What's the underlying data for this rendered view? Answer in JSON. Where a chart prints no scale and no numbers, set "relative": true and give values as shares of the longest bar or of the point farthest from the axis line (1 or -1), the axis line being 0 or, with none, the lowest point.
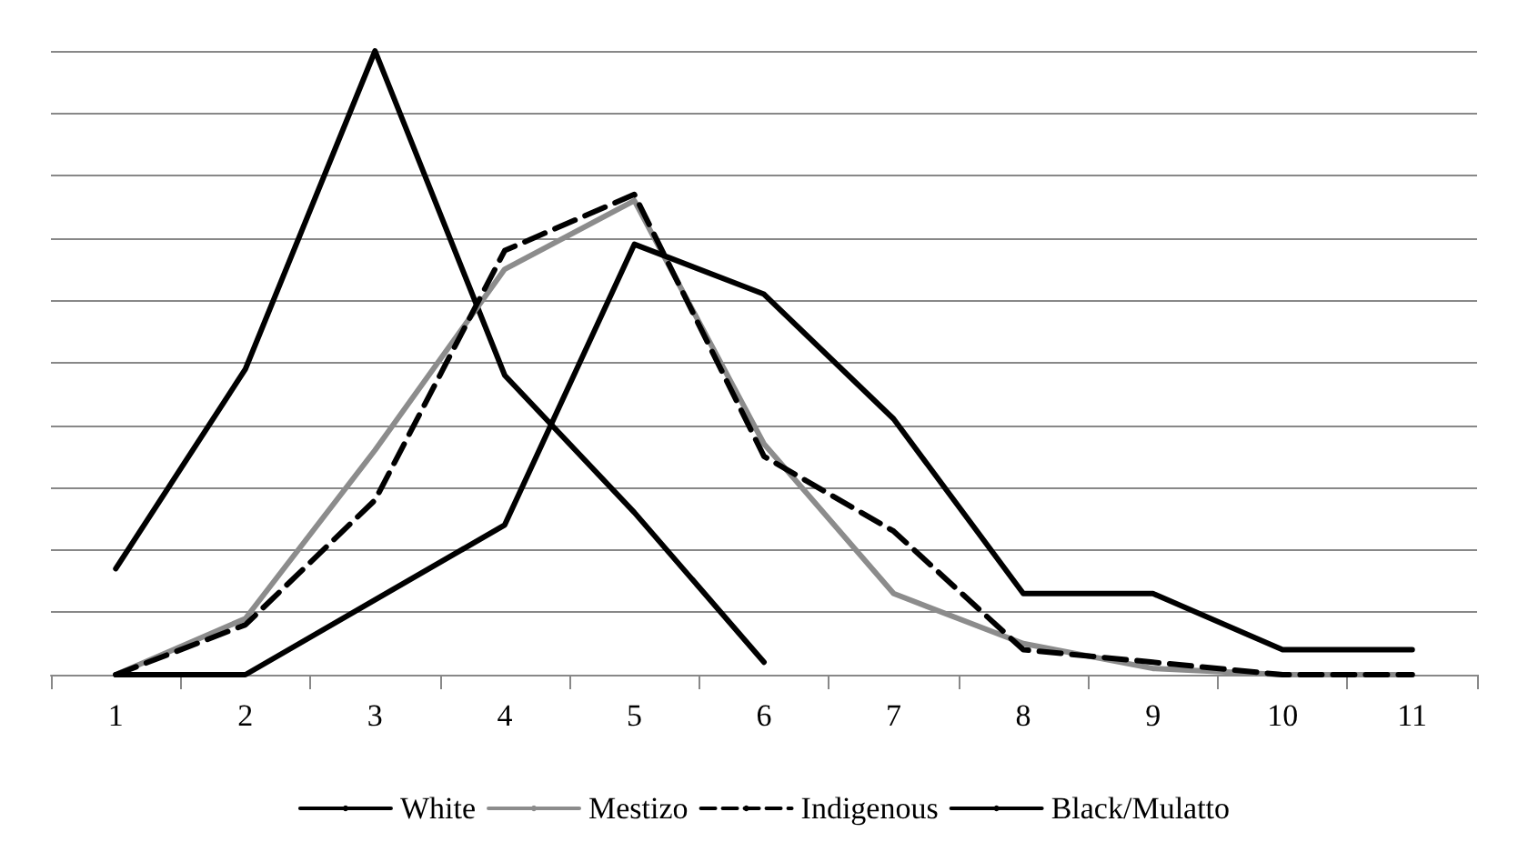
{
  "chart_data": {
    "type": "line",
    "relative": true,
    "grid": "y",
    "legend": "bottom",
    "marker": "none",
    "categories": [
      "1",
      "2",
      "3",
      "4",
      "5",
      "6",
      "7",
      "8",
      "9",
      "10",
      "11"
    ],
    "series": [
      {
        "name": "White",
        "color": "#000000",
        "values": [
          0.17,
          0.49,
          1,
          0.48,
          0.26,
          0.02,
          null,
          null,
          null,
          null,
          null
        ]
      },
      {
        "name": "Mestizo",
        "color": "#8c8c8c",
        "values": [
          0,
          0.09,
          0.36,
          0.65,
          0.76,
          0.37,
          0.13,
          0.05,
          0.01,
          0,
          0
        ]
      },
      {
        "name": "Indigenous",
        "color": "#000000",
        "line_style": "dashed",
        "values": [
          0,
          0.08,
          0.28,
          0.68,
          0.77,
          0.35,
          0.23,
          0.04,
          0.02,
          0,
          0
        ]
      },
      {
        "name": "Black/Mulatto",
        "color": "#000000",
        "values": [
          0,
          0,
          0.12,
          0.24,
          0.69,
          0.61,
          0.41,
          0.13,
          0.13,
          0.04,
          0.04
        ]
      }
    ]
  }
}
